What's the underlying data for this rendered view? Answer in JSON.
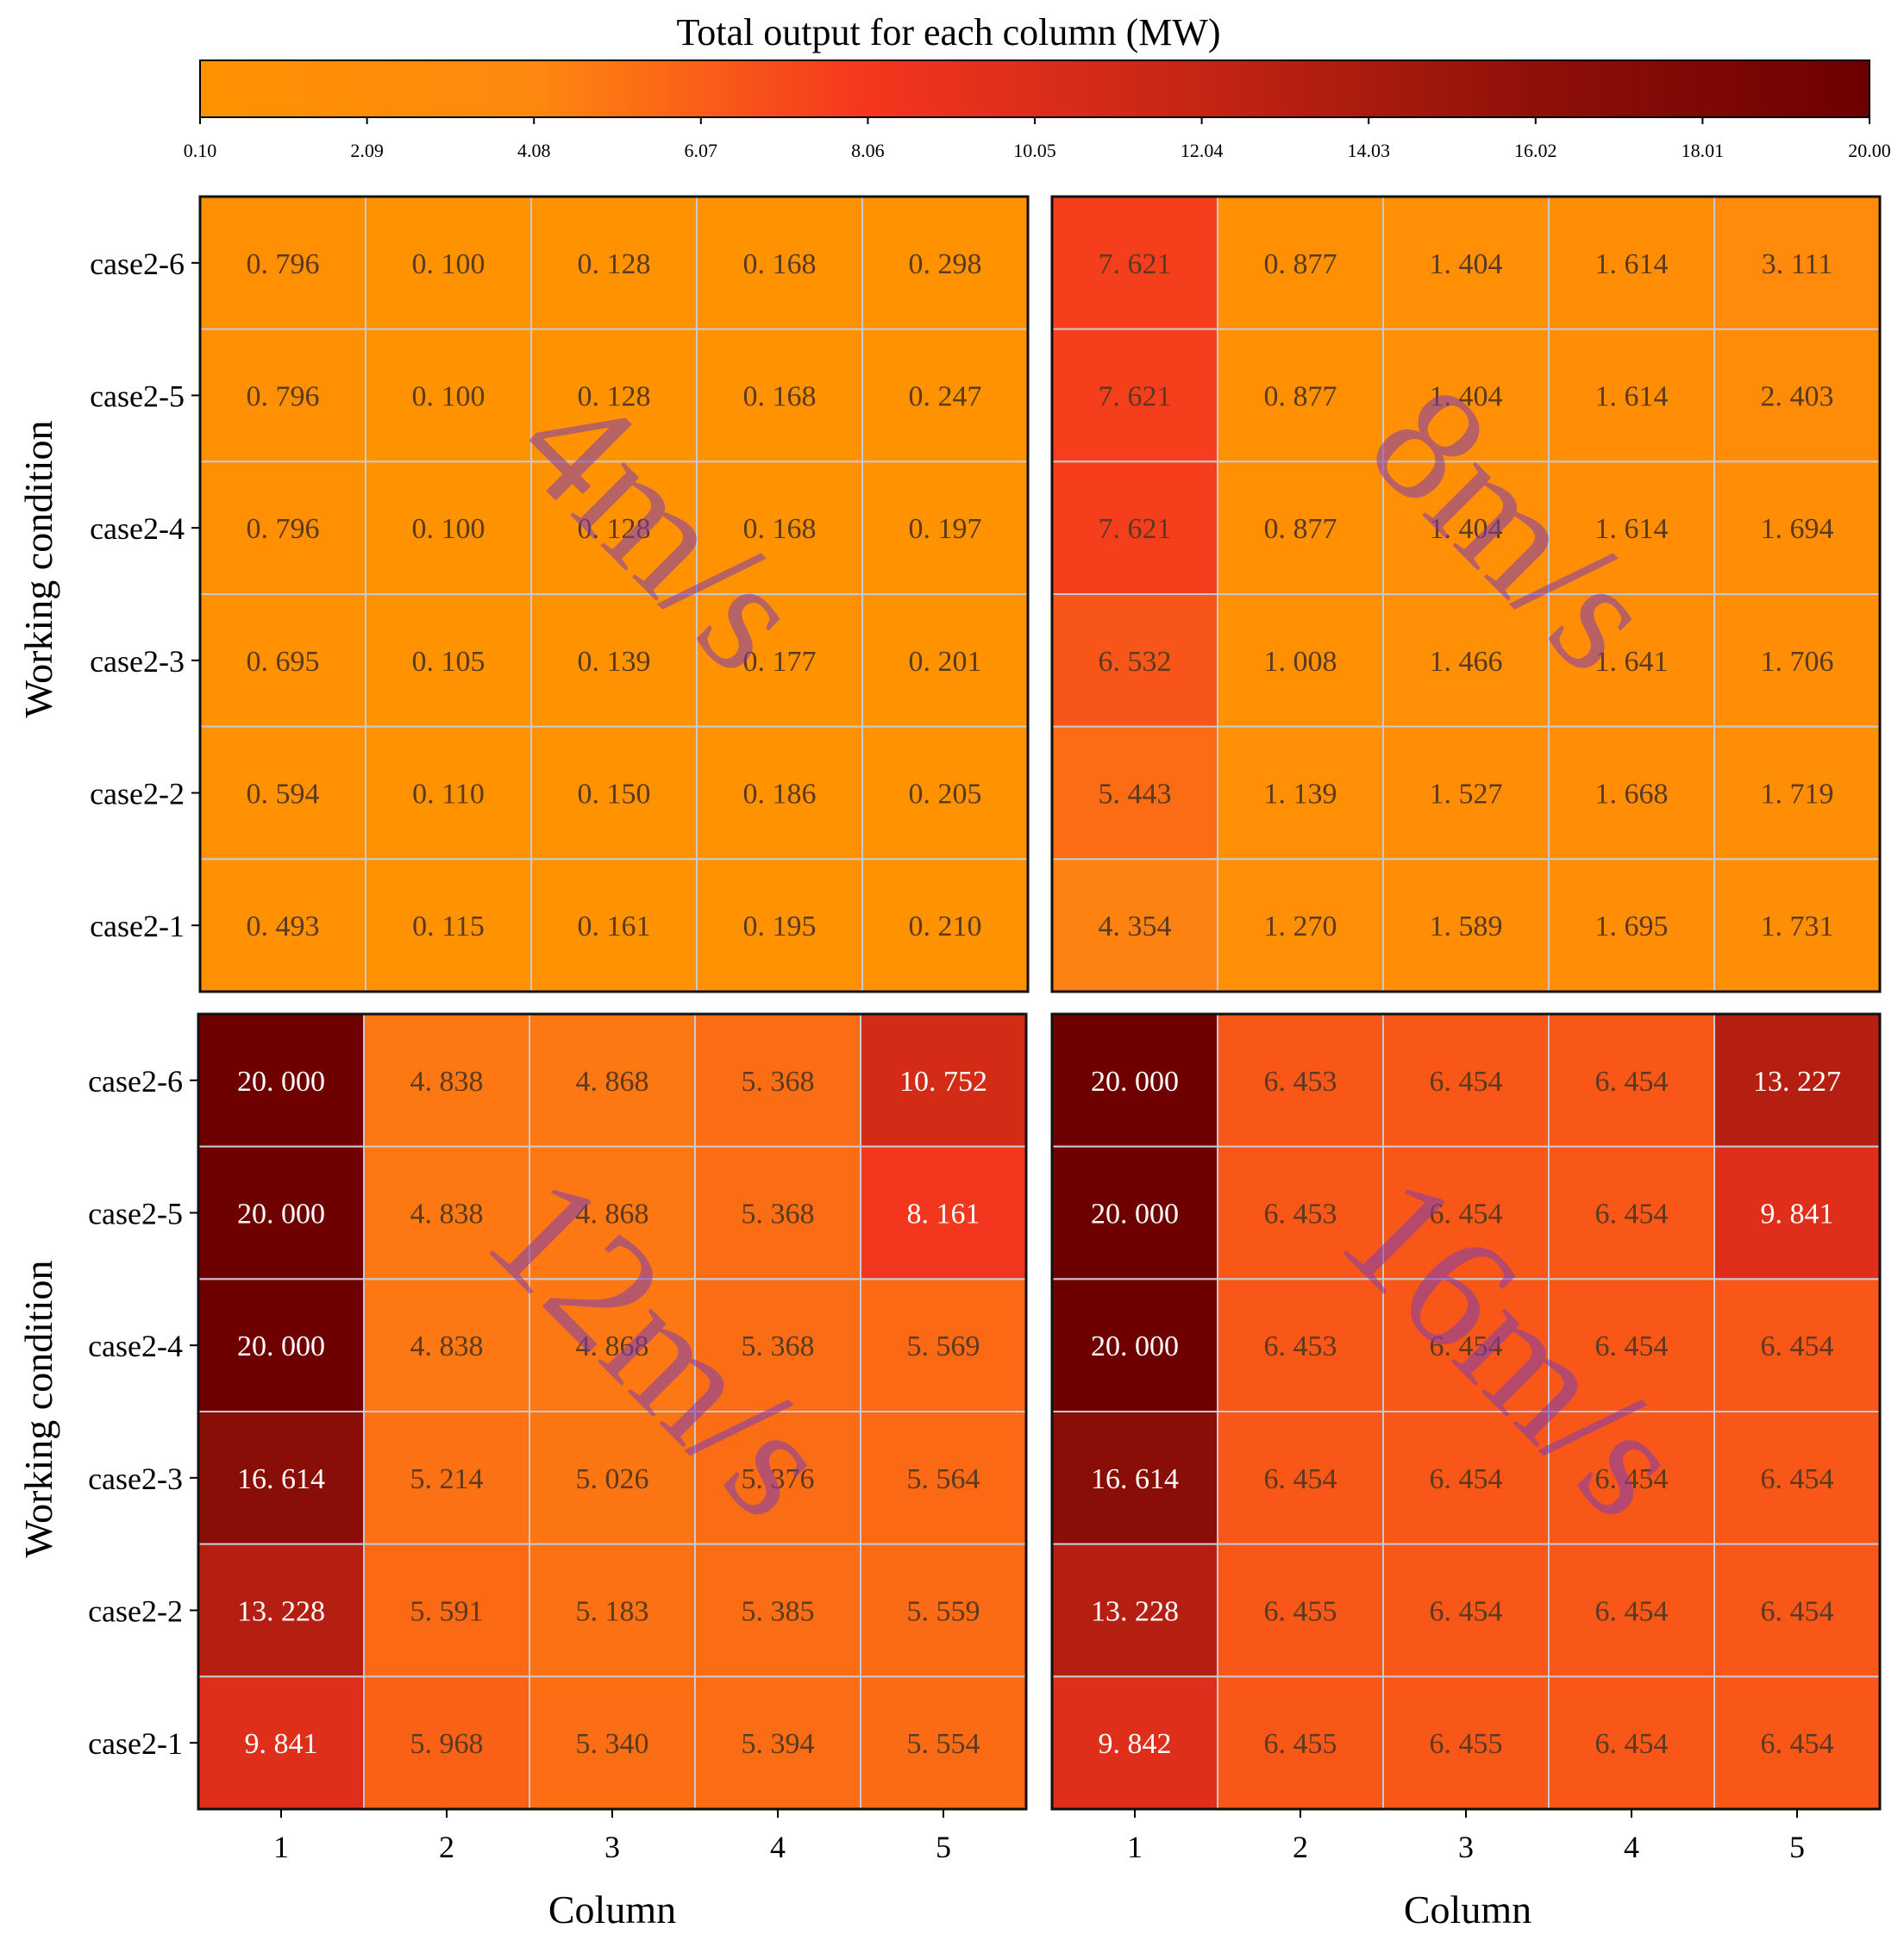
{
  "colorbar": {
    "title": "Total output for each column (MW)",
    "tick_labels": [
      "0.10",
      "2.09",
      "4.08",
      "6.07",
      "8.06",
      "10.05",
      "12.04",
      "14.03",
      "16.02",
      "18.01",
      "20.00"
    ],
    "range": [
      0.1,
      20.0
    ],
    "stops": [
      "#ff9200",
      "#ff8810",
      "#f4361e",
      "#c42514",
      "#8f1009",
      "#6e0000"
    ]
  },
  "axis": {
    "ylabel": "Working condition",
    "xlabel": "Column",
    "row_labels": [
      "case2-6",
      "case2-5",
      "case2-4",
      "case2-3",
      "case2-2",
      "case2-1"
    ],
    "col_labels": [
      "1",
      "2",
      "3",
      "4",
      "5"
    ]
  },
  "chart_data": [
    {
      "type": "heatmap",
      "panel": "top-left",
      "watermark": "4m/s",
      "rows": [
        "case2-6",
        "case2-5",
        "case2-4",
        "case2-3",
        "case2-2",
        "case2-1"
      ],
      "columns": [
        "1",
        "2",
        "3",
        "4",
        "5"
      ],
      "values": [
        [
          "0.796",
          "0.100",
          "0.128",
          "0.168",
          "0.298"
        ],
        [
          "0.796",
          "0.100",
          "0.128",
          "0.168",
          "0.247"
        ],
        [
          "0.796",
          "0.100",
          "0.128",
          "0.168",
          "0.197"
        ],
        [
          "0.695",
          "0.105",
          "0.139",
          "0.177",
          "0.201"
        ],
        [
          "0.594",
          "0.110",
          "0.150",
          "0.186",
          "0.205"
        ],
        [
          "0.493",
          "0.115",
          "0.161",
          "0.195",
          "0.210"
        ]
      ]
    },
    {
      "type": "heatmap",
      "panel": "top-right",
      "watermark": "8m/s",
      "rows": [
        "case2-6",
        "case2-5",
        "case2-4",
        "case2-3",
        "case2-2",
        "case2-1"
      ],
      "columns": [
        "1",
        "2",
        "3",
        "4",
        "5"
      ],
      "values": [
        [
          "7.621",
          "0.877",
          "1.404",
          "1.614",
          "3.111"
        ],
        [
          "7.621",
          "0.877",
          "1.404",
          "1.614",
          "2.403"
        ],
        [
          "7.621",
          "0.877",
          "1.404",
          "1.614",
          "1.694"
        ],
        [
          "6.532",
          "1.008",
          "1.466",
          "1.641",
          "1.706"
        ],
        [
          "5.443",
          "1.139",
          "1.527",
          "1.668",
          "1.719"
        ],
        [
          "4.354",
          "1.270",
          "1.589",
          "1.695",
          "1.731"
        ]
      ]
    },
    {
      "type": "heatmap",
      "panel": "bottom-left",
      "watermark": "12m/s",
      "rows": [
        "case2-6",
        "case2-5",
        "case2-4",
        "case2-3",
        "case2-2",
        "case2-1"
      ],
      "columns": [
        "1",
        "2",
        "3",
        "4",
        "5"
      ],
      "values": [
        [
          "20.000",
          "4.838",
          "4.868",
          "5.368",
          "10.752"
        ],
        [
          "20.000",
          "4.838",
          "4.868",
          "5.368",
          "8.161"
        ],
        [
          "20.000",
          "4.838",
          "4.868",
          "5.368",
          "5.569"
        ],
        [
          "16.614",
          "5.214",
          "5.026",
          "5.376",
          "5.564"
        ],
        [
          "13.228",
          "5.591",
          "5.183",
          "5.385",
          "5.559"
        ],
        [
          "9.841",
          "5.968",
          "5.340",
          "5.394",
          "5.554"
        ]
      ]
    },
    {
      "type": "heatmap",
      "panel": "bottom-right",
      "watermark": "16m/s",
      "rows": [
        "case2-6",
        "case2-5",
        "case2-4",
        "case2-3",
        "case2-2",
        "case2-1"
      ],
      "columns": [
        "1",
        "2",
        "3",
        "4",
        "5"
      ],
      "values": [
        [
          "20.000",
          "6.453",
          "6.454",
          "6.454",
          "13.227"
        ],
        [
          "20.000",
          "6.453",
          "6.454",
          "6.454",
          "9.841"
        ],
        [
          "20.000",
          "6.453",
          "6.454",
          "6.454",
          "6.454"
        ],
        [
          "16.614",
          "6.454",
          "6.454",
          "6.454",
          "6.454"
        ],
        [
          "13.228",
          "6.455",
          "6.454",
          "6.454",
          "6.454"
        ],
        [
          "9.842",
          "6.455",
          "6.455",
          "6.454",
          "6.454"
        ]
      ]
    }
  ]
}
